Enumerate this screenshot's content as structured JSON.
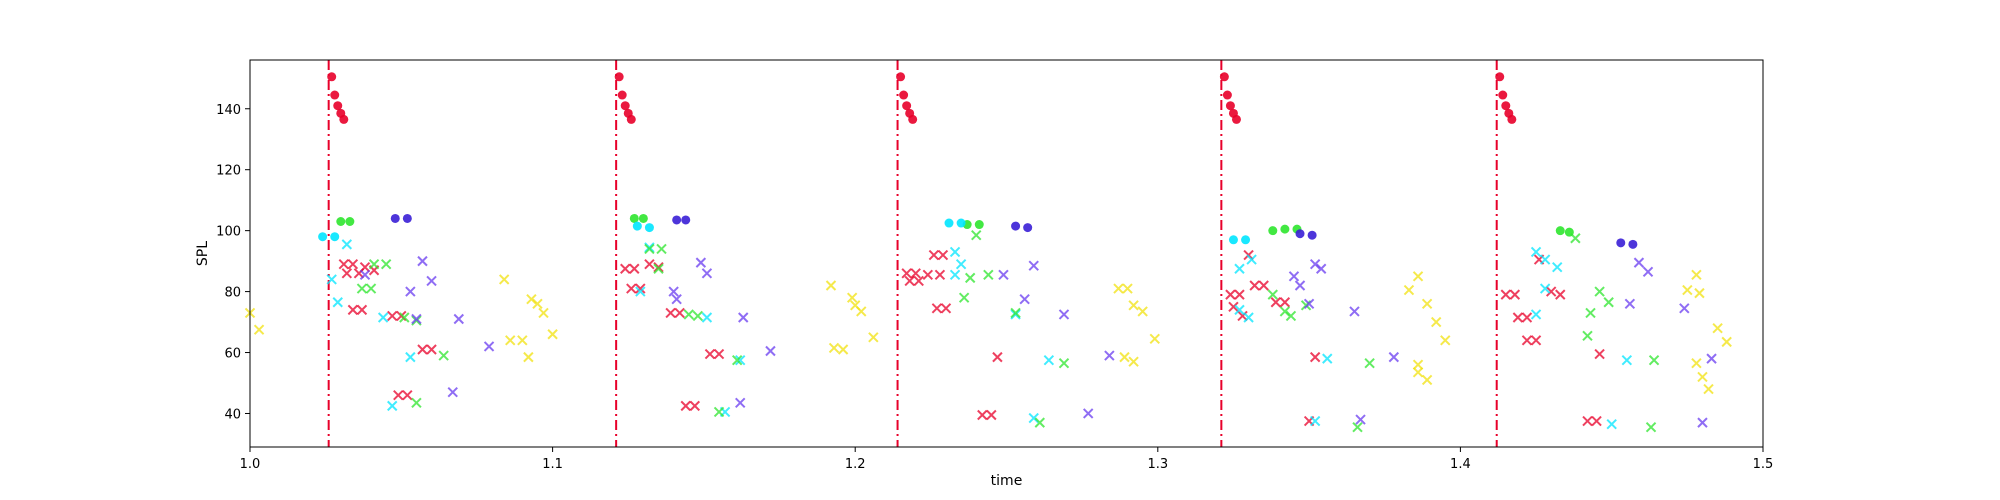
{
  "chart_data": {
    "type": "scatter",
    "title": "",
    "xlabel": "time",
    "ylabel": "SPL",
    "xlim": [
      1.0,
      1.5
    ],
    "ylim": [
      29.0,
      156.0
    ],
    "x_ticks": [
      1.0,
      1.1,
      1.2,
      1.3,
      1.4,
      1.5
    ],
    "x_tick_labels": [
      "1.0",
      "1.1",
      "1.2",
      "1.3",
      "1.4",
      "1.5"
    ],
    "y_ticks": [
      40,
      60,
      80,
      100,
      120,
      140
    ],
    "y_tick_labels": [
      "40",
      "60",
      "80",
      "100",
      "120",
      "140"
    ],
    "grid": false,
    "legend": "none",
    "colors": {
      "red": "#e8002a",
      "cyan": "#00e5ff",
      "green": "#2ee62e",
      "blue": "#3a1fd6",
      "violet": "#6a3cf0",
      "yellow": "#f2e20f"
    },
    "onsets": [
      1.026,
      1.121,
      1.214,
      1.321,
      1.412
    ],
    "onset_line_color": "#e8002a",
    "series": [
      {
        "marker": "circle",
        "color": "red",
        "points": [
          [
            1.027,
            150.5
          ],
          [
            1.028,
            144.5
          ],
          [
            1.029,
            141
          ],
          [
            1.03,
            138.5
          ],
          [
            1.031,
            136.5
          ],
          [
            1.122,
            150.5
          ],
          [
            1.123,
            144.5
          ],
          [
            1.124,
            141
          ],
          [
            1.125,
            138.5
          ],
          [
            1.126,
            136.5
          ],
          [
            1.215,
            150.5
          ],
          [
            1.216,
            144.5
          ],
          [
            1.217,
            141
          ],
          [
            1.218,
            138.5
          ],
          [
            1.219,
            136.5
          ],
          [
            1.322,
            150.5
          ],
          [
            1.323,
            144.5
          ],
          [
            1.324,
            141
          ],
          [
            1.325,
            138.5
          ],
          [
            1.326,
            136.5
          ],
          [
            1.413,
            150.5
          ],
          [
            1.414,
            144.5
          ],
          [
            1.415,
            141
          ],
          [
            1.416,
            138.5
          ],
          [
            1.417,
            136.5
          ]
        ]
      },
      {
        "marker": "circle",
        "color": "green",
        "points": [
          [
            1.03,
            103
          ],
          [
            1.033,
            103
          ],
          [
            1.127,
            104
          ],
          [
            1.13,
            104
          ],
          [
            1.342,
            100.5
          ],
          [
            1.346,
            100.5
          ],
          [
            1.338,
            100
          ],
          [
            1.433,
            100
          ],
          [
            1.436,
            99.5
          ],
          [
            1.237,
            102
          ],
          [
            1.241,
            102
          ]
        ]
      },
      {
        "marker": "circle",
        "color": "blue",
        "points": [
          [
            1.048,
            104
          ],
          [
            1.052,
            104
          ],
          [
            1.141,
            103.5
          ],
          [
            1.144,
            103.5
          ],
          [
            1.253,
            101.5
          ],
          [
            1.257,
            101
          ],
          [
            1.347,
            99
          ],
          [
            1.351,
            98.5
          ],
          [
            1.453,
            96
          ],
          [
            1.457,
            95.5
          ]
        ]
      },
      {
        "marker": "circle",
        "color": "cyan",
        "points": [
          [
            1.024,
            98
          ],
          [
            1.028,
            98
          ],
          [
            1.128,
            101.5
          ],
          [
            1.132,
            101
          ],
          [
            1.231,
            102.5
          ],
          [
            1.235,
            102.5
          ],
          [
            1.325,
            97
          ],
          [
            1.329,
            97
          ]
        ]
      },
      {
        "marker": "x",
        "color": "red",
        "points": [
          [
            1.031,
            89
          ],
          [
            1.034,
            89
          ],
          [
            1.032,
            86
          ],
          [
            1.036,
            86
          ],
          [
            1.038,
            88
          ],
          [
            1.041,
            87
          ],
          [
            1.034,
            74
          ],
          [
            1.037,
            74
          ],
          [
            1.047,
            72
          ],
          [
            1.05,
            72
          ],
          [
            1.049,
            46
          ],
          [
            1.052,
            46
          ],
          [
            1.057,
            61
          ],
          [
            1.06,
            61
          ],
          [
            1.124,
            87.5
          ],
          [
            1.127,
            87.5
          ],
          [
            1.126,
            81
          ],
          [
            1.129,
            81
          ],
          [
            1.132,
            89
          ],
          [
            1.135,
            88
          ],
          [
            1.139,
            73
          ],
          [
            1.142,
            73
          ],
          [
            1.144,
            42.5
          ],
          [
            1.147,
            42.5
          ],
          [
            1.152,
            59.5
          ],
          [
            1.155,
            59.5
          ],
          [
            1.217,
            86
          ],
          [
            1.22,
            86
          ],
          [
            1.218,
            83.5
          ],
          [
            1.221,
            83.5
          ],
          [
            1.226,
            92
          ],
          [
            1.229,
            92
          ],
          [
            1.224,
            85.5
          ],
          [
            1.228,
            85.5
          ],
          [
            1.227,
            74.5
          ],
          [
            1.23,
            74.5
          ],
          [
            1.242,
            39.5
          ],
          [
            1.245,
            39.5
          ],
          [
            1.247,
            58.5
          ],
          [
            1.324,
            79
          ],
          [
            1.327,
            79
          ],
          [
            1.325,
            75
          ],
          [
            1.328,
            72
          ],
          [
            1.33,
            92
          ],
          [
            1.332,
            82
          ],
          [
            1.335,
            82
          ],
          [
            1.339,
            76.5
          ],
          [
            1.342,
            76.5
          ],
          [
            1.352,
            58.5
          ],
          [
            1.35,
            37.5
          ],
          [
            1.415,
            79
          ],
          [
            1.418,
            79
          ],
          [
            1.419,
            71.5
          ],
          [
            1.422,
            71.5
          ],
          [
            1.422,
            64
          ],
          [
            1.425,
            64
          ],
          [
            1.426,
            90.5
          ],
          [
            1.43,
            80
          ],
          [
            1.433,
            79
          ],
          [
            1.442,
            37.5
          ],
          [
            1.445,
            37.5
          ],
          [
            1.446,
            59.5
          ]
        ]
      },
      {
        "marker": "x",
        "color": "cyan",
        "points": [
          [
            1.027,
            84
          ],
          [
            1.029,
            76.5
          ],
          [
            1.032,
            95.5
          ],
          [
            1.044,
            71.5
          ],
          [
            1.047,
            42.5
          ],
          [
            1.053,
            58.5
          ],
          [
            1.129,
            80
          ],
          [
            1.132,
            94.5
          ],
          [
            1.151,
            71.5
          ],
          [
            1.157,
            40.5
          ],
          [
            1.162,
            57.5
          ],
          [
            1.233,
            93
          ],
          [
            1.235,
            89
          ],
          [
            1.233,
            85.5
          ],
          [
            1.253,
            72.5
          ],
          [
            1.259,
            38.5
          ],
          [
            1.264,
            57.5
          ],
          [
            1.327,
            87.5
          ],
          [
            1.331,
            90.5
          ],
          [
            1.327,
            74
          ],
          [
            1.33,
            71.5
          ],
          [
            1.352,
            37.5
          ],
          [
            1.356,
            58
          ],
          [
            1.425,
            93
          ],
          [
            1.428,
            90.5
          ],
          [
            1.432,
            88
          ],
          [
            1.425,
            72.5
          ],
          [
            1.428,
            81
          ],
          [
            1.45,
            36.5
          ],
          [
            1.455,
            57.5
          ]
        ]
      },
      {
        "marker": "x",
        "color": "green",
        "points": [
          [
            1.037,
            81
          ],
          [
            1.04,
            81
          ],
          [
            1.041,
            89
          ],
          [
            1.045,
            89
          ],
          [
            1.051,
            71.5
          ],
          [
            1.055,
            70.5
          ],
          [
            1.055,
            43.5
          ],
          [
            1.064,
            59
          ],
          [
            1.132,
            94
          ],
          [
            1.136,
            94
          ],
          [
            1.135,
            87.5
          ],
          [
            1.145,
            72.5
          ],
          [
            1.148,
            72
          ],
          [
            1.161,
            57.5
          ],
          [
            1.155,
            40.5
          ],
          [
            1.24,
            98.5
          ],
          [
            1.244,
            85.5
          ],
          [
            1.238,
            84.5
          ],
          [
            1.236,
            78
          ],
          [
            1.253,
            73
          ],
          [
            1.261,
            37
          ],
          [
            1.269,
            56.5
          ],
          [
            1.338,
            79
          ],
          [
            1.342,
            73.5
          ],
          [
            1.344,
            72
          ],
          [
            1.349,
            75.5
          ],
          [
            1.366,
            35.5
          ],
          [
            1.37,
            56.5
          ],
          [
            1.438,
            97.5
          ],
          [
            1.446,
            80
          ],
          [
            1.449,
            76.5
          ],
          [
            1.443,
            73
          ],
          [
            1.442,
            65.5
          ],
          [
            1.463,
            35.5
          ],
          [
            1.464,
            57.5
          ]
        ]
      },
      {
        "marker": "x",
        "color": "violet",
        "points": [
          [
            1.038,
            85.5
          ],
          [
            1.053,
            80
          ],
          [
            1.057,
            90
          ],
          [
            1.06,
            83.5
          ],
          [
            1.055,
            71
          ],
          [
            1.069,
            71
          ],
          [
            1.067,
            47
          ],
          [
            1.079,
            62
          ],
          [
            1.14,
            80
          ],
          [
            1.141,
            77.5
          ],
          [
            1.149,
            89.5
          ],
          [
            1.151,
            86
          ],
          [
            1.163,
            71.5
          ],
          [
            1.162,
            43.5
          ],
          [
            1.172,
            60.5
          ],
          [
            1.249,
            85.5
          ],
          [
            1.256,
            77.5
          ],
          [
            1.259,
            88.5
          ],
          [
            1.269,
            72.5
          ],
          [
            1.277,
            40
          ],
          [
            1.284,
            59
          ],
          [
            1.345,
            85
          ],
          [
            1.347,
            82
          ],
          [
            1.352,
            89
          ],
          [
            1.354,
            87.5
          ],
          [
            1.35,
            76
          ],
          [
            1.365,
            73.5
          ],
          [
            1.367,
            38
          ],
          [
            1.378,
            58.5
          ],
          [
            1.456,
            76
          ],
          [
            1.459,
            89.5
          ],
          [
            1.462,
            86.5
          ],
          [
            1.474,
            74.5
          ],
          [
            1.48,
            37
          ],
          [
            1.483,
            58
          ]
        ]
      },
      {
        "marker": "x",
        "color": "yellow",
        "points": [
          [
            1.0,
            73
          ],
          [
            1.003,
            67.5
          ],
          [
            1.084,
            84
          ],
          [
            1.093,
            77.5
          ],
          [
            1.095,
            76
          ],
          [
            1.097,
            73
          ],
          [
            1.1,
            66
          ],
          [
            1.086,
            64
          ],
          [
            1.09,
            64
          ],
          [
            1.092,
            58.5
          ],
          [
            1.192,
            82
          ],
          [
            1.199,
            78
          ],
          [
            1.2,
            75.5
          ],
          [
            1.202,
            73.5
          ],
          [
            1.206,
            65
          ],
          [
            1.193,
            61.5
          ],
          [
            1.196,
            61
          ],
          [
            1.287,
            81
          ],
          [
            1.29,
            81
          ],
          [
            1.292,
            75.5
          ],
          [
            1.295,
            73.5
          ],
          [
            1.299,
            64.5
          ],
          [
            1.289,
            58.5
          ],
          [
            1.292,
            57
          ],
          [
            1.383,
            80.5
          ],
          [
            1.386,
            85
          ],
          [
            1.389,
            76
          ],
          [
            1.392,
            70
          ],
          [
            1.395,
            64
          ],
          [
            1.386,
            56
          ],
          [
            1.386,
            53.5
          ],
          [
            1.389,
            51
          ],
          [
            1.475,
            80.5
          ],
          [
            1.478,
            85.5
          ],
          [
            1.479,
            79.5
          ],
          [
            1.485,
            68
          ],
          [
            1.488,
            63.5
          ],
          [
            1.478,
            56.5
          ],
          [
            1.48,
            52
          ],
          [
            1.482,
            48
          ]
        ]
      }
    ]
  }
}
